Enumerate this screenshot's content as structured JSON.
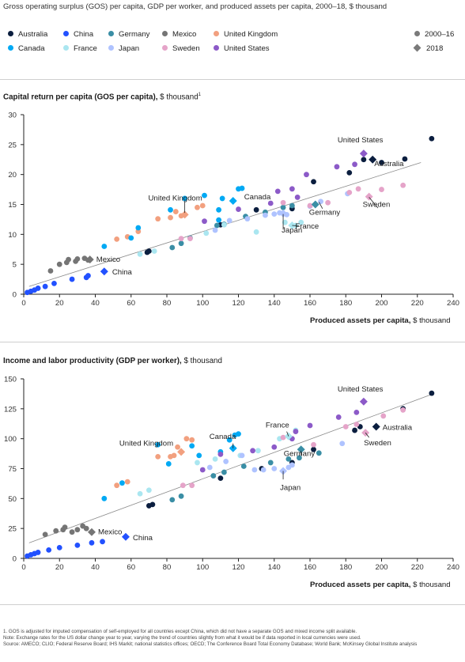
{
  "header": {
    "title": "Gross operating surplus (GOS) per capita, GDP per worker, and produced assets per capita, 2000–18, $ thousand"
  },
  "legend": {
    "countries": [
      {
        "name": "Australia",
        "color": "#0b1e3f"
      },
      {
        "name": "China",
        "color": "#2251ff"
      },
      {
        "name": "Germany",
        "color": "#3a8ea5"
      },
      {
        "name": "Mexico",
        "color": "#757575"
      },
      {
        "name": "United Kingdom",
        "color": "#f2a07f"
      },
      {
        "name": "Canada",
        "color": "#00a9f4"
      },
      {
        "name": "France",
        "color": "#aae6f0"
      },
      {
        "name": "Japan",
        "color": "#afc3ff"
      },
      {
        "name": "Sweden",
        "color": "#e5a4c9"
      },
      {
        "name": "United States",
        "color": "#8c5ac8"
      }
    ],
    "period_2000_16": "2000–16",
    "period_2018": "2018",
    "marker_color": "#7a7a7a"
  },
  "panels": [
    {
      "title": "Capital return per capita (GOS per capita),",
      "title_unit": " $ thousand",
      "title_sup": "1",
      "xlabel": "Produced assets per capita,",
      "xlabel_unit": " $ thousand"
    },
    {
      "title": "Income and labor productivity (GDP per worker),",
      "title_unit": " $ thousand",
      "xlabel": "Produced assets per capita,",
      "xlabel_unit": " $ thousand"
    }
  ],
  "chart_data": [
    {
      "type": "scatter",
      "title": "Capital return per capita (GOS per capita), $ thousand",
      "xlabel": "Produced assets per capita, $ thousand",
      "ylabel": "",
      "xlim": [
        0,
        240
      ],
      "ylim": [
        0,
        30
      ],
      "xticks": [
        0,
        20,
        40,
        60,
        80,
        100,
        120,
        140,
        160,
        180,
        200,
        220,
        240
      ],
      "yticks": [
        0,
        5,
        10,
        15,
        20,
        25,
        30
      ],
      "trendline": [
        [
          3,
          1.3
        ],
        [
          222,
          22
        ]
      ],
      "series": [
        {
          "name": "Australia",
          "color": "#0b1e3f",
          "points": [
            [
              69,
              7
            ],
            [
              70,
              7.2
            ],
            [
              110,
              11.6
            ],
            [
              130,
              14.1
            ],
            [
              150,
              14.3
            ],
            [
              162,
              18.8
            ],
            [
              182,
              20.3
            ],
            [
              190,
              22.5
            ],
            [
              200,
              22
            ],
            [
              213,
              22.6
            ],
            [
              228,
              26
            ]
          ],
          "y2018": [
            195,
            22.5
          ],
          "label": "Australia"
        },
        {
          "name": "China",
          "color": "#2251ff",
          "points": [
            [
              2,
              0.3
            ],
            [
              4,
              0.5
            ],
            [
              6,
              0.7
            ],
            [
              8,
              1
            ],
            [
              12,
              1.3
            ],
            [
              17,
              1.8
            ],
            [
              27,
              2.5
            ],
            [
              35,
              2.8
            ],
            [
              36,
              3.1
            ]
          ],
          "y2018": [
            45,
            3.8
          ],
          "label": "China"
        },
        {
          "name": "Germany",
          "color": "#3a8ea5",
          "points": [
            [
              83,
              7.8
            ],
            [
              88,
              8.5
            ],
            [
              93,
              9.4
            ],
            [
              108,
              11.5
            ],
            [
              112,
              11.7
            ],
            [
              124,
              13
            ],
            [
              135,
              13.7
            ],
            [
              145,
              14.5
            ],
            [
              150,
              14.8
            ]
          ],
          "y2018": [
            163,
            15
          ],
          "label": "Germany"
        },
        {
          "name": "Mexico",
          "color": "#757575",
          "points": [
            [
              15,
              3.9
            ],
            [
              20,
              5
            ],
            [
              24,
              5.3
            ],
            [
              25,
              5.8
            ],
            [
              29,
              5.5
            ],
            [
              30,
              5.9
            ],
            [
              34,
              6
            ],
            [
              36,
              5.7
            ]
          ],
          "y2018": [
            37,
            5.8
          ],
          "label": "Mexico"
        },
        {
          "name": "United Kingdom",
          "color": "#f2a07f",
          "points": [
            [
              52,
              9.2
            ],
            [
              58,
              9.6
            ],
            [
              64,
              10.5
            ],
            [
              75,
              12.6
            ],
            [
              82,
              12.8
            ],
            [
              85,
              13.8
            ],
            [
              88,
              13.1
            ],
            [
              97,
              14.5
            ],
            [
              100,
              14.8
            ]
          ],
          "y2018": [
            90,
            13.3
          ],
          "label": "United Kingdom"
        },
        {
          "name": "Canada",
          "color": "#00a9f4",
          "points": [
            [
              45,
              8
            ],
            [
              60,
              9.4
            ],
            [
              64,
              11.1
            ],
            [
              82,
              14.1
            ],
            [
              90,
              16
            ],
            [
              101,
              16.5
            ],
            [
              109,
              12.4
            ],
            [
              109,
              14.1
            ],
            [
              111,
              16
            ],
            [
              120,
              17.6
            ],
            [
              122,
              17.7
            ]
          ],
          "y2018": [
            117,
            15.6
          ],
          "label": "Canada"
        },
        {
          "name": "France",
          "color": "#aae6f0",
          "points": [
            [
              65,
              6.7
            ],
            [
              73,
              7.2
            ],
            [
              102,
              10.2
            ],
            [
              112,
              11.6
            ],
            [
              130,
              10.4
            ],
            [
              146,
              12
            ],
            [
              152,
              11.5
            ],
            [
              155,
              12
            ]
          ],
          "y2018": [
            150,
            11.5
          ],
          "label": "France"
        },
        {
          "name": "Japan",
          "color": "#afc3ff",
          "points": [
            [
              107,
              10.7
            ],
            [
              115,
              12.3
            ],
            [
              125,
              12.6
            ],
            [
              135,
              13.2
            ],
            [
              140,
              13.4
            ],
            [
              143,
              13.6
            ],
            [
              147,
              13.3
            ],
            [
              160,
              14.7
            ],
            [
              166,
              15.5
            ],
            [
              181,
              16.8
            ]
          ],
          "y2018": [
            145,
            13.5
          ],
          "label": "Japan"
        },
        {
          "name": "Sweden",
          "color": "#e5a4c9",
          "points": [
            [
              88,
              9.3
            ],
            [
              93,
              9.3
            ],
            [
              145,
              15.3
            ],
            [
              160,
              14.8
            ],
            [
              170,
              15.3
            ],
            [
              182,
              17
            ],
            [
              187,
              17.6
            ],
            [
              200,
              17.5
            ],
            [
              212,
              18.2
            ]
          ],
          "y2018": [
            193,
            16.3
          ],
          "label": "Sweden"
        },
        {
          "name": "United States",
          "color": "#8c5ac8",
          "points": [
            [
              101,
              12.2
            ],
            [
              120,
              14.2
            ],
            [
              138,
              15.2
            ],
            [
              142,
              17.2
            ],
            [
              150,
              17.6
            ],
            [
              153,
              16.2
            ],
            [
              158,
              20
            ],
            [
              175,
              21.3
            ],
            [
              185,
              21.7
            ]
          ],
          "y2018": [
            190,
            23.5
          ],
          "label": "United States"
        }
      ]
    },
    {
      "type": "scatter",
      "title": "Income and labor productivity (GDP per worker), $ thousand",
      "xlabel": "Produced assets per capita, $ thousand",
      "ylabel": "",
      "xlim": [
        0,
        240
      ],
      "ylim": [
        0,
        150
      ],
      "xticks": [
        0,
        20,
        40,
        60,
        80,
        100,
        120,
        140,
        160,
        180,
        200,
        220,
        240
      ],
      "yticks": [
        0,
        25,
        50,
        75,
        100,
        125,
        150
      ],
      "trendline": [
        [
          3,
          13
        ],
        [
          228,
          137
        ]
      ],
      "series": [
        {
          "name": "Australia",
          "color": "#0b1e3f",
          "points": [
            [
              70,
              44
            ],
            [
              72,
              45
            ],
            [
              110,
              67
            ],
            [
              133,
              75
            ],
            [
              150,
              80
            ],
            [
              162,
              91
            ],
            [
              185,
              107
            ],
            [
              188,
              110
            ],
            [
              212,
              125
            ],
            [
              228,
              138
            ]
          ],
          "y2018": [
            197,
            110
          ],
          "label": "Australia"
        },
        {
          "name": "China",
          "color": "#2251ff",
          "points": [
            [
              2,
              2
            ],
            [
              4,
              3
            ],
            [
              6,
              4
            ],
            [
              8,
              5
            ],
            [
              14,
              7
            ],
            [
              20,
              9
            ],
            [
              30,
              11
            ],
            [
              38,
              13
            ],
            [
              44,
              14
            ]
          ],
          "y2018": [
            57,
            18
          ],
          "label": "China"
        },
        {
          "name": "Germany",
          "color": "#3a8ea5",
          "points": [
            [
              83,
              49
            ],
            [
              88,
              52
            ],
            [
              106,
              69
            ],
            [
              112,
              72
            ],
            [
              123,
              77
            ],
            [
              138,
              80
            ],
            [
              148,
              83
            ],
            [
              154,
              84
            ],
            [
              165,
              88
            ]
          ],
          "y2018": [
            155,
            91
          ],
          "label": "Germany"
        },
        {
          "name": "Mexico",
          "color": "#757575",
          "points": [
            [
              12,
              20
            ],
            [
              18,
              23
            ],
            [
              22,
              24
            ],
            [
              23,
              26
            ],
            [
              27,
              22
            ],
            [
              30,
              24
            ],
            [
              33,
              27
            ],
            [
              35,
              25
            ]
          ],
          "y2018": [
            38,
            22
          ],
          "label": "Mexico"
        },
        {
          "name": "United Kingdom",
          "color": "#f2a07f",
          "points": [
            [
              52,
              61
            ],
            [
              58,
              64
            ],
            [
              75,
              85
            ],
            [
              82,
              85
            ],
            [
              84,
              86
            ],
            [
              86,
              93
            ],
            [
              91,
              100
            ],
            [
              94,
              99
            ]
          ],
          "y2018": [
            88,
            89
          ],
          "label": "United Kingdom"
        },
        {
          "name": "Canada",
          "color": "#00a9f4",
          "points": [
            [
              45,
              50
            ],
            [
              55,
              63
            ],
            [
              75,
              95
            ],
            [
              81,
              79
            ],
            [
              94,
              94
            ],
            [
              98,
              86
            ],
            [
              110,
              89
            ],
            [
              115,
              99
            ],
            [
              118,
              103
            ],
            [
              120,
              104
            ]
          ],
          "y2018": [
            117,
            92
          ],
          "label": "Canada"
        },
        {
          "name": "France",
          "color": "#aae6f0",
          "points": [
            [
              65,
              54
            ],
            [
              70,
              57
            ],
            [
              97,
              80
            ],
            [
              107,
              83
            ],
            [
              121,
              86
            ],
            [
              131,
              90
            ],
            [
              143,
              100
            ],
            [
              152,
              107
            ]
          ],
          "y2018": [
            148,
            102
          ],
          "label": "France"
        },
        {
          "name": "Japan",
          "color": "#afc3ff",
          "points": [
            [
              104,
              76
            ],
            [
              113,
              81
            ],
            [
              122,
              86
            ],
            [
              129,
              74
            ],
            [
              134,
              74
            ],
            [
              140,
              75
            ],
            [
              145,
              73
            ],
            [
              148,
              76
            ],
            [
              150,
              78
            ],
            [
              178,
              96
            ]
          ],
          "y2018": [
            145,
            73
          ],
          "label": "Japan"
        },
        {
          "name": "Sweden",
          "color": "#e5a4c9",
          "points": [
            [
              89,
              61
            ],
            [
              94,
              61
            ],
            [
              145,
              101
            ],
            [
              162,
              95
            ],
            [
              180,
              110
            ],
            [
              186,
              112
            ],
            [
              201,
              119
            ],
            [
              212,
              124
            ]
          ],
          "y2018": [
            191,
            105
          ],
          "label": "Sweden"
        },
        {
          "name": "United States",
          "color": "#8c5ac8",
          "points": [
            [
              100,
              74
            ],
            [
              110,
              87
            ],
            [
              128,
              90
            ],
            [
              140,
              93
            ],
            [
              150,
              100
            ],
            [
              152,
              106
            ],
            [
              160,
              111
            ],
            [
              176,
              118
            ],
            [
              186,
              122
            ]
          ],
          "y2018": [
            190,
            131
          ],
          "label": "United States"
        }
      ]
    }
  ],
  "footnotes": {
    "note1": "1.   GOS is adjusted for imputed compensation of self-employed for all countries except China, which did not have a separate GOS and mixed income split available.",
    "note2": "Note: Exchange rates for the US dollar change year to year, varying the trend of countries slightly from what it would be if data reported in local currencies were used.",
    "source": "Source: AMECO; CLIO; Federal Reserve Board; IHS Markit; national statistics offices; OECD; The Conference Board Total Economy Database; World Bank; McKinsey Global Institute analysis"
  }
}
